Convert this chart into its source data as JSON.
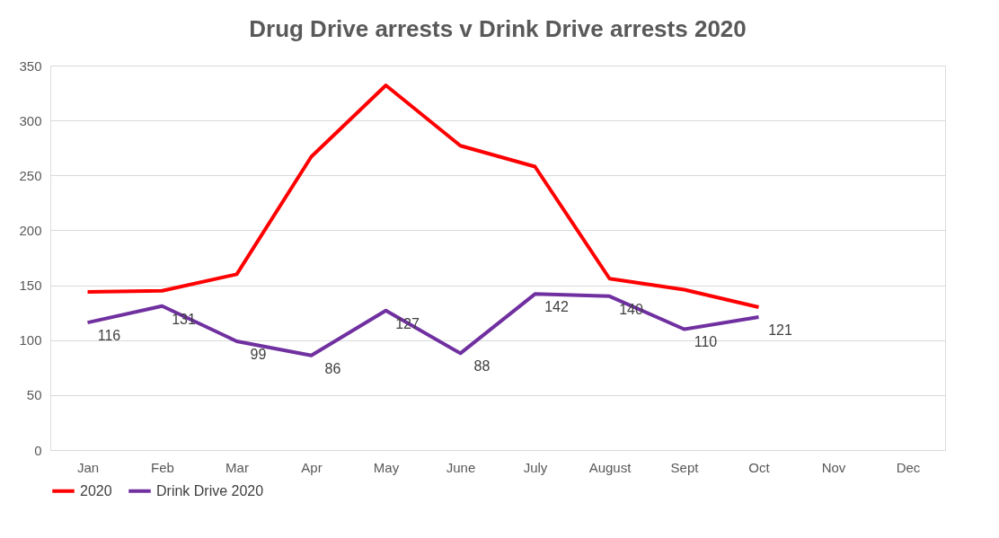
{
  "chart_data": {
    "type": "line",
    "title": "Drug Drive arrests v Drink Drive arrests 2020",
    "categories": [
      "Jan",
      "Feb",
      "Mar",
      "Apr",
      "May",
      "June",
      "July",
      "August",
      "Sept",
      "Oct",
      "Nov",
      "Dec"
    ],
    "series": [
      {
        "name": "2020",
        "color": "#ff0000",
        "values": [
          144,
          145,
          160,
          267,
          332,
          277,
          258,
          156,
          146,
          130,
          null,
          null
        ]
      },
      {
        "name": "Drink Drive 2020",
        "color": "#7030a0",
        "values": [
          116,
          131,
          99,
          86,
          127,
          88,
          142,
          140,
          110,
          121,
          null,
          null
        ],
        "value_labels": [
          "116",
          "131",
          "99",
          "86",
          "127",
          "88",
          "142",
          "140",
          "110",
          "121",
          null,
          null
        ]
      }
    ],
    "ylim": [
      0,
      350
    ],
    "yticks": [
      0,
      50,
      100,
      150,
      200,
      250,
      300,
      350
    ],
    "grid": "y",
    "legend": "bottom",
    "marker": "none",
    "line_style": "solid"
  }
}
